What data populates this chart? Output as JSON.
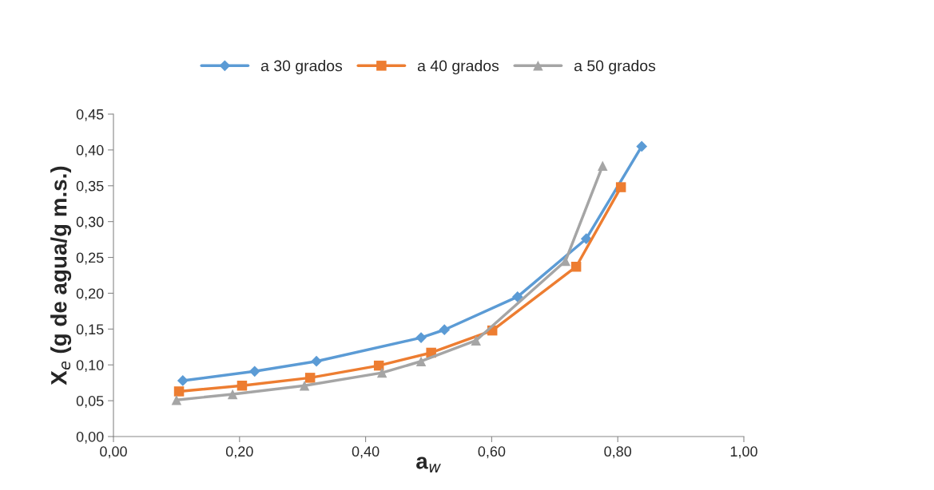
{
  "chart_data": {
    "type": "line",
    "xlabel": "a$_{w}$",
    "ylabel": "X$_{e}$ (g de agua/g m.s.)",
    "xlim": [
      0,
      1
    ],
    "xticks": [
      {
        "value": 0,
        "label": "0,00"
      },
      {
        "value": 0.2,
        "label": "0,20"
      },
      {
        "value": 0.4,
        "label": "0,40"
      },
      {
        "value": 0.6,
        "label": "0,60"
      },
      {
        "value": 0.8,
        "label": "0,80"
      },
      {
        "value": 1,
        "label": "1,00"
      }
    ],
    "ylim": [
      0,
      0.45
    ],
    "yticks": [
      {
        "value": 0,
        "label": "0,00"
      },
      {
        "value": 0.05,
        "label": "0,05"
      },
      {
        "value": 0.1,
        "label": "0,10"
      },
      {
        "value": 0.15,
        "label": "0,15"
      },
      {
        "value": 0.2,
        "label": "0,20"
      },
      {
        "value": 0.25,
        "label": "0,25"
      },
      {
        "value": 0.3,
        "label": "0,30"
      },
      {
        "value": 0.35,
        "label": "0,35"
      },
      {
        "value": 0.4,
        "label": "0,40"
      },
      {
        "value": 0.45,
        "label": "0,45"
      }
    ],
    "grid": false,
    "legend": "top",
    "series": [
      {
        "name": "a 30 grados",
        "color": "#5b9bd5",
        "marker": "diamond",
        "x": [
          0.11,
          0.224,
          0.322,
          0.488,
          0.525,
          0.641,
          0.75,
          0.838
        ],
        "values": [
          0.078,
          0.091,
          0.105,
          0.138,
          0.149,
          0.195,
          0.276,
          0.405
        ]
      },
      {
        "name": "a 40 grados",
        "color": "#ed7d31",
        "marker": "square",
        "x": [
          0.104,
          0.204,
          0.312,
          0.421,
          0.504,
          0.601,
          0.734,
          0.805
        ],
        "values": [
          0.063,
          0.071,
          0.082,
          0.099,
          0.117,
          0.148,
          0.237,
          0.348
        ]
      },
      {
        "name": "a 50 grados",
        "color": "#a5a5a5",
        "marker": "triangle",
        "x": [
          0.1,
          0.189,
          0.303,
          0.426,
          0.488,
          0.575,
          0.717,
          0.776
        ],
        "values": [
          0.051,
          0.059,
          0.071,
          0.089,
          0.105,
          0.134,
          0.245,
          0.378
        ]
      }
    ]
  }
}
